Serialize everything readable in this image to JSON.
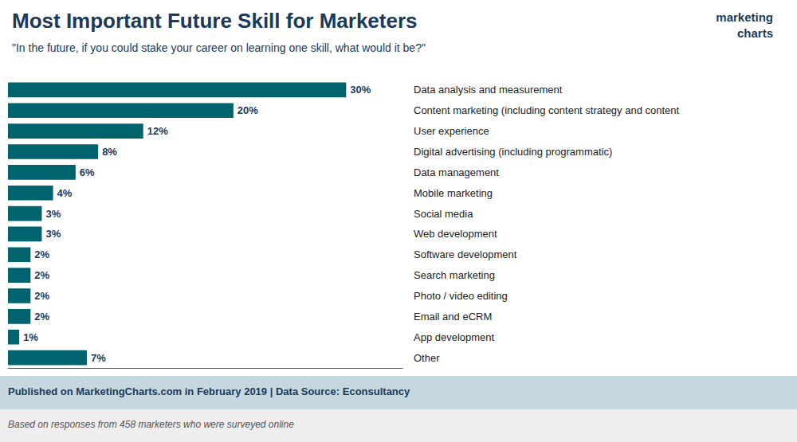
{
  "chart_data": {
    "type": "bar",
    "orientation": "horizontal",
    "title": "Most Important Future Skill for Marketers",
    "subtitle": "\"In the future, if you could stake your career on learning one skill, what would it be?\"",
    "categories": [
      "Data analysis and measurement",
      "Content marketing (including content strategy and content",
      "User experience",
      "Digital advertising (including programmatic)",
      "Data management",
      "Mobile marketing",
      "Social media",
      "Web development",
      "Software development",
      "Search marketing",
      "Photo / video editing",
      "Email and eCRM",
      "App development",
      "Other"
    ],
    "values": [
      30,
      20,
      12,
      8,
      6,
      4,
      3,
      3,
      2,
      2,
      2,
      2,
      1,
      7
    ],
    "value_labels": [
      "30%",
      "20%",
      "12%",
      "8%",
      "6%",
      "4%",
      "3%",
      "3%",
      "2%",
      "2%",
      "2%",
      "2%",
      "1%",
      "7%"
    ],
    "data_labels": true,
    "color": "#00636e",
    "xlim": [
      0,
      35
    ],
    "grid": false,
    "tick_labels": "y",
    "annotations": [
      "Published on MarketingCharts.com in February 2019 | Data Source: Econsultancy",
      "Based on responses from 458 marketers who were surveyed online",
      "marketing",
      "charts"
    ]
  }
}
